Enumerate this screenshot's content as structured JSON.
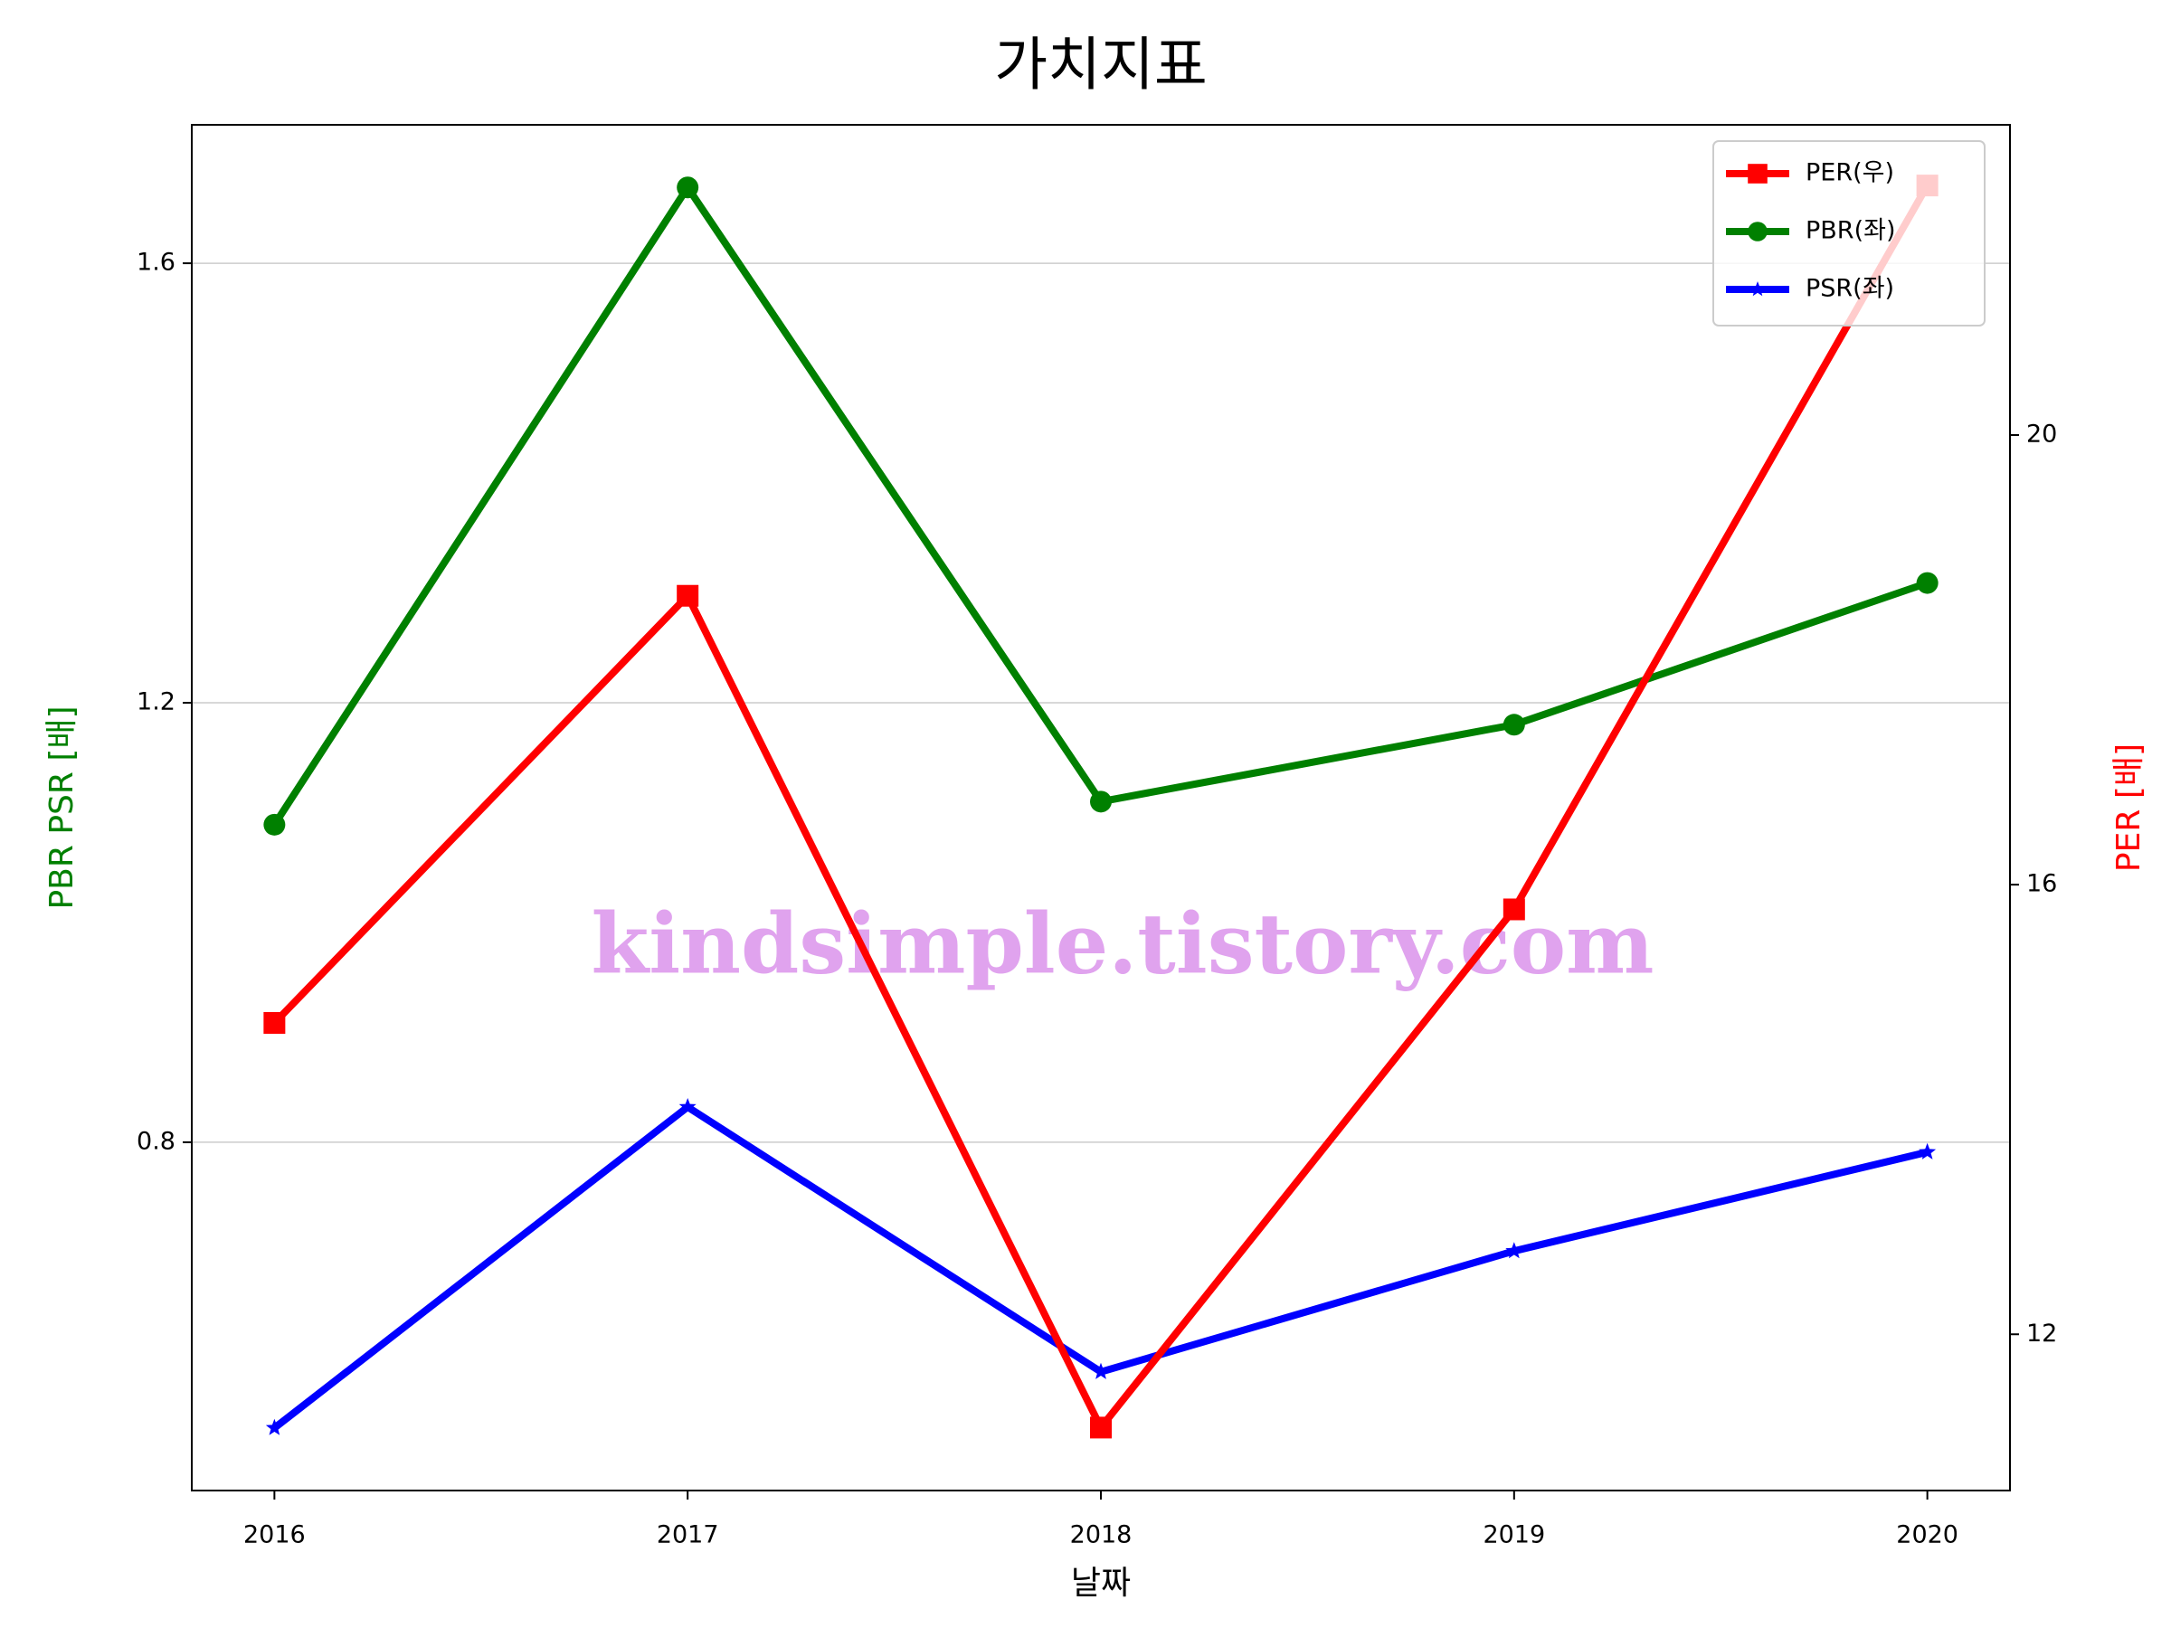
{
  "chart_data": {
    "type": "line",
    "title": "가치지표",
    "xlabel": "날짜",
    "ylabel": "PBR PSR [배]",
    "y2label": "PER [배]",
    "x": [
      2016,
      2017,
      2018,
      2019,
      2020
    ],
    "xlim": [
      2015.8,
      2020.2
    ],
    "xticks": [
      2016,
      2017,
      2018,
      2019,
      2020
    ],
    "ylim": [
      0.483,
      1.726
    ],
    "yticks": [
      0.8,
      1.2,
      1.6
    ],
    "y2lim": [
      10.61,
      22.76
    ],
    "y2ticks": [
      12,
      16,
      20
    ],
    "grid": true,
    "legend": "upper right",
    "series": [
      {
        "name": "PER(우)",
        "color": "#ff0000",
        "marker": "square",
        "axis": "y2",
        "values": [
          14.77,
          18.57,
          11.17,
          15.78,
          22.22
        ]
      },
      {
        "name": "PBR(좌)",
        "color": "#008000",
        "marker": "circle",
        "values": [
          1.089,
          1.669,
          1.11,
          1.18,
          1.309
        ]
      },
      {
        "name": "PSR(좌)",
        "color": "#0000ff",
        "marker": "star",
        "values": [
          0.54,
          0.832,
          0.591,
          0.701,
          0.791
        ]
      }
    ],
    "annotation": "kindsimple.tistory.com"
  }
}
